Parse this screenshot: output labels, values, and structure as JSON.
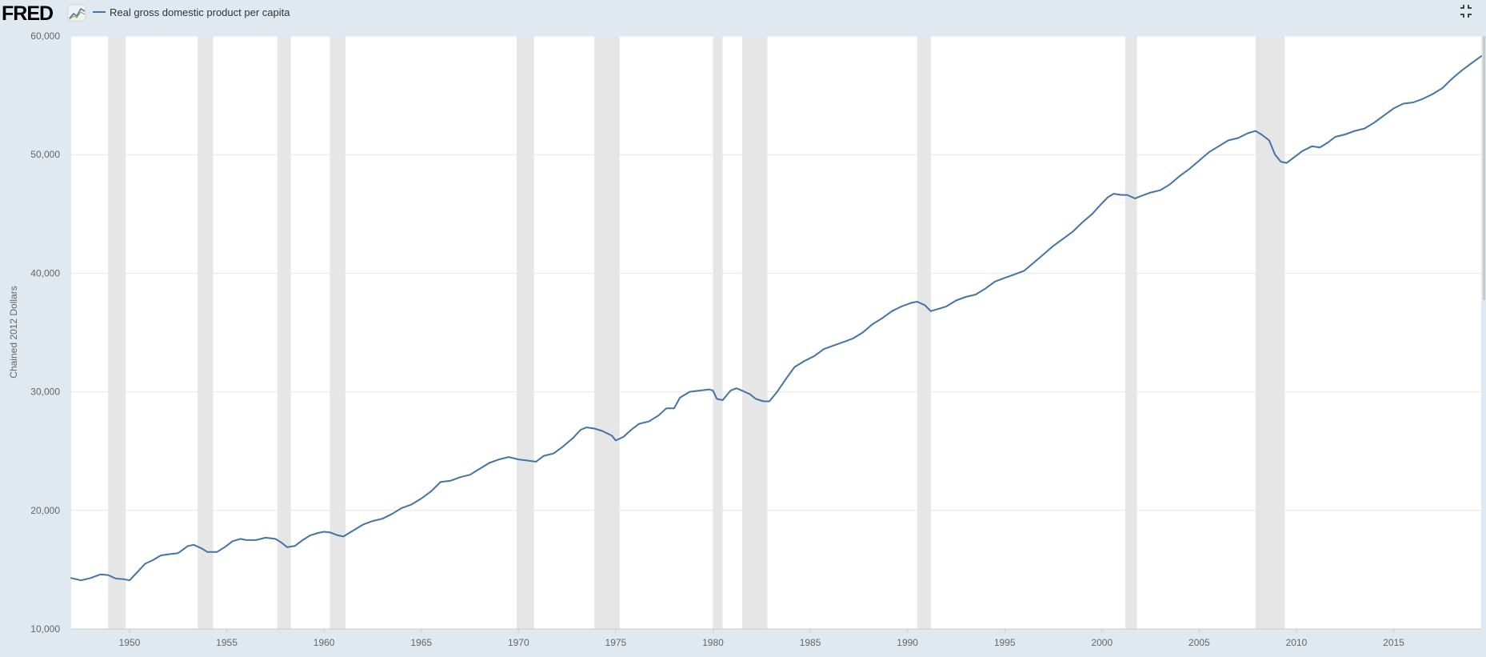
{
  "header": {
    "logo_text": "FRED",
    "legend_label": "Real gross domestic product per capita"
  },
  "colors": {
    "background": "#e1e9f0",
    "plot_background": "#ffffff",
    "series_line": "#4572a7",
    "recession_band": "#e6e6e6",
    "grid": "#e6e6e6",
    "tick_text": "#666666"
  },
  "icons": {
    "logo_graph": "line-graph-icon",
    "fullscreen": "fullscreen-exit-icon"
  },
  "chart_data": {
    "type": "line",
    "title": "",
    "xlabel": "",
    "ylabel": "Chained 2012 Dollars",
    "xlim": [
      1947.0,
      2019.5
    ],
    "ylim": [
      10000,
      60000
    ],
    "y_ticks": [
      10000,
      20000,
      30000,
      40000,
      50000,
      60000
    ],
    "y_tick_labels": [
      "10,000",
      "20,000",
      "30,000",
      "40,000",
      "50,000",
      "60,000"
    ],
    "x_ticks": [
      1950,
      1955,
      1960,
      1965,
      1970,
      1975,
      1980,
      1985,
      1990,
      1995,
      2000,
      2005,
      2010,
      2015
    ],
    "x_tick_labels": [
      "1950",
      "1955",
      "1960",
      "1965",
      "1970",
      "1975",
      "1980",
      "1985",
      "1990",
      "1995",
      "2000",
      "2005",
      "2010",
      "2015"
    ],
    "grid": true,
    "legend_position": "top-left",
    "recessions": [
      [
        1948.9,
        1949.8
      ],
      [
        1953.5,
        1954.3
      ],
      [
        1957.6,
        1958.3
      ],
      [
        1960.3,
        1961.1
      ],
      [
        1969.9,
        1970.8
      ],
      [
        1973.9,
        1975.2
      ],
      [
        1980.0,
        1980.5
      ],
      [
        1981.5,
        1982.8
      ],
      [
        1990.5,
        1991.2
      ],
      [
        2001.2,
        2001.8
      ],
      [
        2007.9,
        2009.4
      ]
    ],
    "series": [
      {
        "name": "Real gross domestic product per capita",
        "points": [
          [
            1947.0,
            14300
          ],
          [
            1947.5,
            14100
          ],
          [
            1948.0,
            14300
          ],
          [
            1948.5,
            14600
          ],
          [
            1948.9,
            14550
          ],
          [
            1949.3,
            14250
          ],
          [
            1949.7,
            14200
          ],
          [
            1950.0,
            14100
          ],
          [
            1950.4,
            14800
          ],
          [
            1950.8,
            15500
          ],
          [
            1951.2,
            15800
          ],
          [
            1951.6,
            16200
          ],
          [
            1952.0,
            16300
          ],
          [
            1952.5,
            16400
          ],
          [
            1953.0,
            17000
          ],
          [
            1953.3,
            17100
          ],
          [
            1953.7,
            16800
          ],
          [
            1954.0,
            16500
          ],
          [
            1954.5,
            16500
          ],
          [
            1954.9,
            16900
          ],
          [
            1955.3,
            17400
          ],
          [
            1955.7,
            17600
          ],
          [
            1956.0,
            17500
          ],
          [
            1956.5,
            17500
          ],
          [
            1957.0,
            17700
          ],
          [
            1957.5,
            17600
          ],
          [
            1957.8,
            17300
          ],
          [
            1958.1,
            16900
          ],
          [
            1958.5,
            17000
          ],
          [
            1958.9,
            17500
          ],
          [
            1959.3,
            17900
          ],
          [
            1959.7,
            18100
          ],
          [
            1960.0,
            18200
          ],
          [
            1960.3,
            18150
          ],
          [
            1960.7,
            17900
          ],
          [
            1961.0,
            17800
          ],
          [
            1961.5,
            18300
          ],
          [
            1962.0,
            18800
          ],
          [
            1962.5,
            19100
          ],
          [
            1963.0,
            19300
          ],
          [
            1963.5,
            19700
          ],
          [
            1964.0,
            20200
          ],
          [
            1964.5,
            20500
          ],
          [
            1965.0,
            21000
          ],
          [
            1965.5,
            21600
          ],
          [
            1966.0,
            22400
          ],
          [
            1966.5,
            22500
          ],
          [
            1967.0,
            22800
          ],
          [
            1967.5,
            23000
          ],
          [
            1968.0,
            23500
          ],
          [
            1968.5,
            24000
          ],
          [
            1969.0,
            24300
          ],
          [
            1969.5,
            24500
          ],
          [
            1970.0,
            24300
          ],
          [
            1970.5,
            24200
          ],
          [
            1970.9,
            24100
          ],
          [
            1971.3,
            24600
          ],
          [
            1971.8,
            24800
          ],
          [
            1972.3,
            25400
          ],
          [
            1972.8,
            26100
          ],
          [
            1973.2,
            26800
          ],
          [
            1973.5,
            27000
          ],
          [
            1973.9,
            26900
          ],
          [
            1974.3,
            26700
          ],
          [
            1974.8,
            26300
          ],
          [
            1975.0,
            25900
          ],
          [
            1975.4,
            26200
          ],
          [
            1975.8,
            26800
          ],
          [
            1976.2,
            27300
          ],
          [
            1976.7,
            27500
          ],
          [
            1977.2,
            28000
          ],
          [
            1977.6,
            28600
          ],
          [
            1978.0,
            28600
          ],
          [
            1978.3,
            29500
          ],
          [
            1978.8,
            30000
          ],
          [
            1979.3,
            30100
          ],
          [
            1979.8,
            30200
          ],
          [
            1980.0,
            30100
          ],
          [
            1980.2,
            29400
          ],
          [
            1980.5,
            29300
          ],
          [
            1980.9,
            30100
          ],
          [
            1981.2,
            30300
          ],
          [
            1981.5,
            30100
          ],
          [
            1981.9,
            29800
          ],
          [
            1982.2,
            29400
          ],
          [
            1982.6,
            29200
          ],
          [
            1982.9,
            29200
          ],
          [
            1983.3,
            30000
          ],
          [
            1983.8,
            31200
          ],
          [
            1984.2,
            32100
          ],
          [
            1984.7,
            32600
          ],
          [
            1985.2,
            33000
          ],
          [
            1985.7,
            33600
          ],
          [
            1986.2,
            33900
          ],
          [
            1986.7,
            34200
          ],
          [
            1987.2,
            34500
          ],
          [
            1987.7,
            35000
          ],
          [
            1988.2,
            35700
          ],
          [
            1988.7,
            36200
          ],
          [
            1989.2,
            36800
          ],
          [
            1989.7,
            37200
          ],
          [
            1990.2,
            37500
          ],
          [
            1990.5,
            37600
          ],
          [
            1990.9,
            37300
          ],
          [
            1991.2,
            36800
          ],
          [
            1991.6,
            37000
          ],
          [
            1992.0,
            37200
          ],
          [
            1992.5,
            37700
          ],
          [
            1993.0,
            38000
          ],
          [
            1993.5,
            38200
          ],
          [
            1994.0,
            38700
          ],
          [
            1994.5,
            39300
          ],
          [
            1995.0,
            39600
          ],
          [
            1995.5,
            39900
          ],
          [
            1996.0,
            40200
          ],
          [
            1996.5,
            40900
          ],
          [
            1997.0,
            41600
          ],
          [
            1997.5,
            42300
          ],
          [
            1998.0,
            42900
          ],
          [
            1998.5,
            43500
          ],
          [
            1999.0,
            44300
          ],
          [
            1999.5,
            45000
          ],
          [
            2000.0,
            45900
          ],
          [
            2000.3,
            46400
          ],
          [
            2000.6,
            46700
          ],
          [
            2001.0,
            46600
          ],
          [
            2001.3,
            46600
          ],
          [
            2001.7,
            46300
          ],
          [
            2002.0,
            46500
          ],
          [
            2002.5,
            46800
          ],
          [
            2003.0,
            47000
          ],
          [
            2003.5,
            47500
          ],
          [
            2004.0,
            48200
          ],
          [
            2004.5,
            48800
          ],
          [
            2005.0,
            49500
          ],
          [
            2005.5,
            50200
          ],
          [
            2006.0,
            50700
          ],
          [
            2006.5,
            51200
          ],
          [
            2007.0,
            51400
          ],
          [
            2007.5,
            51800
          ],
          [
            2007.9,
            52000
          ],
          [
            2008.2,
            51700
          ],
          [
            2008.6,
            51200
          ],
          [
            2008.9,
            50000
          ],
          [
            2009.2,
            49400
          ],
          [
            2009.5,
            49300
          ],
          [
            2009.9,
            49800
          ],
          [
            2010.3,
            50300
          ],
          [
            2010.8,
            50700
          ],
          [
            2011.2,
            50600
          ],
          [
            2011.6,
            51000
          ],
          [
            2012.0,
            51500
          ],
          [
            2012.5,
            51700
          ],
          [
            2013.0,
            52000
          ],
          [
            2013.5,
            52200
          ],
          [
            2014.0,
            52700
          ],
          [
            2014.5,
            53300
          ],
          [
            2015.0,
            53900
          ],
          [
            2015.5,
            54300
          ],
          [
            2016.0,
            54400
          ],
          [
            2016.5,
            54700
          ],
          [
            2017.0,
            55100
          ],
          [
            2017.5,
            55600
          ],
          [
            2018.0,
            56400
          ],
          [
            2018.5,
            57100
          ],
          [
            2019.0,
            57700
          ],
          [
            2019.5,
            58300
          ]
        ]
      }
    ]
  }
}
